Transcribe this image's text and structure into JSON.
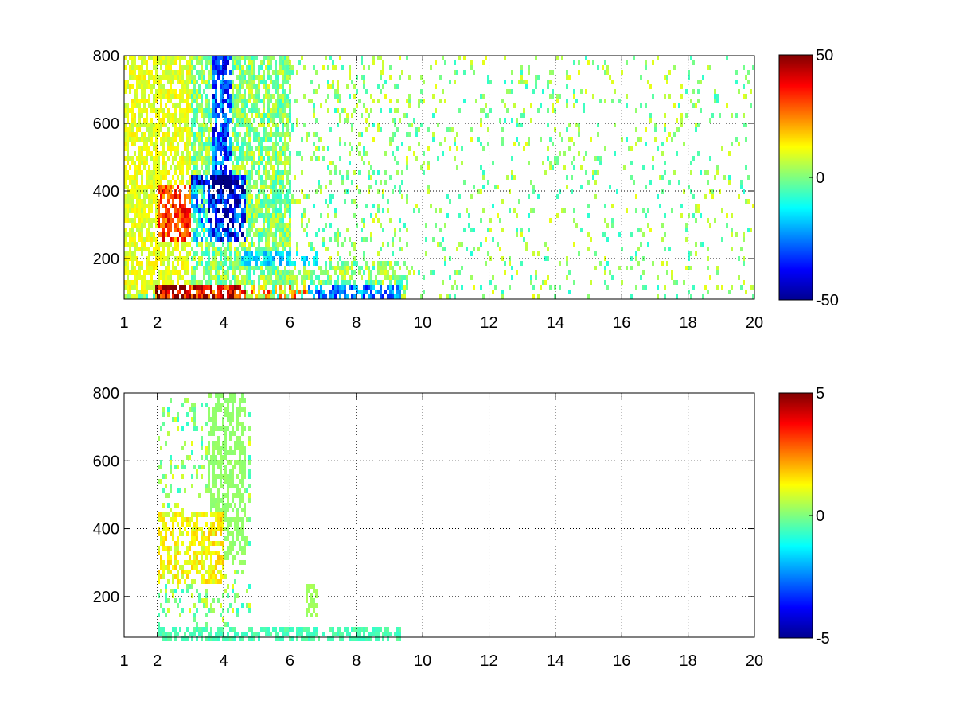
{
  "figure": {
    "background": "#ffffff",
    "colormap": "jet",
    "colormap_stops": [
      "#00008f",
      "#0000ff",
      "#00ffff",
      "#ffff00",
      "#ff0000",
      "#800000"
    ]
  },
  "chart_data": [
    {
      "type": "heatmap",
      "title": "",
      "xlabel": "",
      "ylabel": "",
      "xlim": [
        1,
        20
      ],
      "ylim": [
        80,
        800
      ],
      "xticks": [
        1,
        2,
        4,
        6,
        8,
        10,
        12,
        14,
        16,
        18,
        20
      ],
      "xtick_labels": [
        "1",
        "2",
        "4",
        "6",
        "8",
        "10",
        "12",
        "14",
        "16",
        "18",
        "20"
      ],
      "yticks": [
        200,
        400,
        600,
        800
      ],
      "ytick_labels": [
        "200",
        "400",
        "600",
        "800"
      ],
      "grid": "dotted",
      "colorbar": {
        "min": -50,
        "max": 50,
        "ticks": [
          50,
          0,
          -50
        ],
        "tick_labels": [
          "50",
          "0",
          "-50"
        ]
      },
      "features": [
        {
          "x": [
            2.0,
            3.5
          ],
          "y": [
            250,
            420
          ],
          "value": 20
        },
        {
          "x": [
            3.0,
            4.6
          ],
          "y": [
            260,
            450
          ],
          "value": -35
        },
        {
          "x": [
            3.6,
            4.2
          ],
          "y": [
            400,
            800
          ],
          "value": -30
        },
        {
          "x": [
            1.9,
            6.5
          ],
          "y": [
            80,
            130
          ],
          "value": 40
        },
        {
          "x": [
            4.5,
            9.3
          ],
          "y": [
            80,
            130
          ],
          "value": -25
        },
        {
          "x": [
            4.5,
            7.0
          ],
          "y": [
            190,
            230
          ],
          "value": -15
        },
        {
          "x": [
            1.0,
            3.0
          ],
          "y": [
            100,
            800
          ],
          "value": 10
        }
      ]
    },
    {
      "type": "heatmap",
      "title": "",
      "xlabel": "",
      "ylabel": "",
      "xlim": [
        1,
        20
      ],
      "ylim": [
        80,
        800
      ],
      "xticks": [
        1,
        2,
        4,
        6,
        8,
        10,
        12,
        14,
        16,
        18,
        20
      ],
      "xtick_labels": [
        "1",
        "2",
        "4",
        "6",
        "8",
        "10",
        "12",
        "14",
        "16",
        "18",
        "20"
      ],
      "yticks": [
        200,
        400,
        600,
        800
      ],
      "ytick_labels": [
        "200",
        "400",
        "600",
        "800"
      ],
      "grid": "dotted",
      "colorbar": {
        "min": -5,
        "max": 5,
        "ticks": [
          5,
          0,
          -5
        ],
        "tick_labels": [
          "5",
          "0",
          "-5"
        ]
      },
      "features": [
        {
          "x": [
            2.0,
            4.0
          ],
          "y": [
            250,
            450
          ],
          "value": 1.2
        },
        {
          "x": [
            3.5,
            4.6
          ],
          "y": [
            300,
            800
          ],
          "value": 0.2
        },
        {
          "x": [
            2.0,
            9.3
          ],
          "y": [
            80,
            120
          ],
          "value": -0.5
        },
        {
          "x": [
            6.4,
            6.8
          ],
          "y": [
            150,
            250
          ],
          "value": 0.3
        }
      ]
    }
  ]
}
